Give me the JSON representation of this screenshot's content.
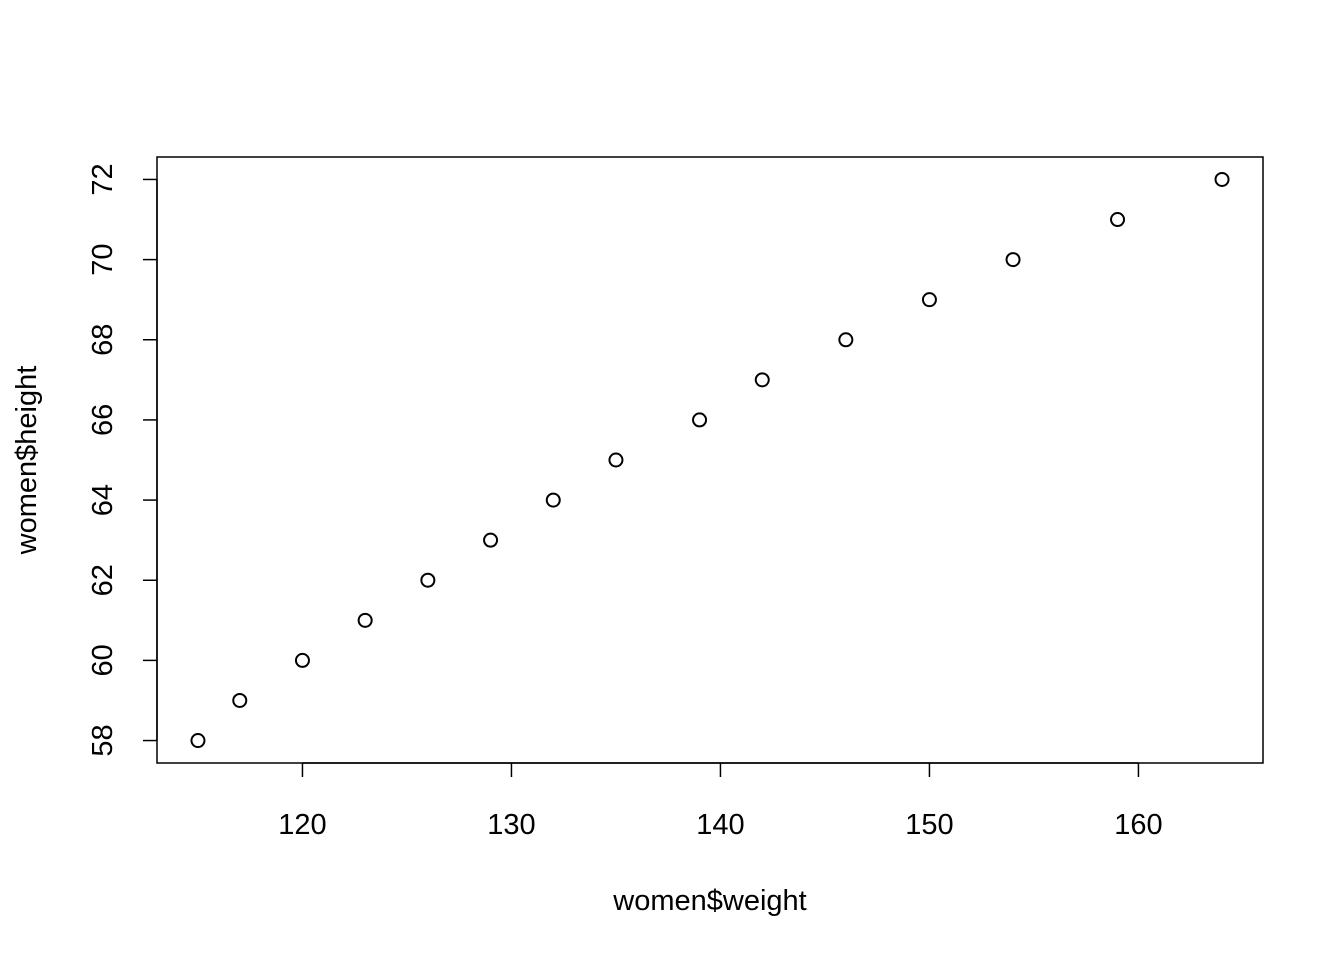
{
  "chart_data": {
    "type": "scatter",
    "title": "",
    "xlabel": "women$weight",
    "ylabel": "women$height",
    "x": [
      115,
      117,
      120,
      123,
      126,
      129,
      132,
      135,
      139,
      142,
      146,
      150,
      154,
      159,
      164
    ],
    "y": [
      58,
      59,
      60,
      61,
      62,
      63,
      64,
      65,
      66,
      67,
      68,
      69,
      70,
      71,
      72
    ],
    "xlim": [
      113.04,
      165.96
    ],
    "ylim": [
      57.44,
      72.56
    ],
    "x_ticks": [
      "120",
      "130",
      "140",
      "150",
      "160"
    ],
    "y_ticks": [
      "58",
      "60",
      "62",
      "64",
      "66",
      "68",
      "70",
      "72"
    ],
    "point_style": "open-circle",
    "grid": false,
    "legend": "none"
  }
}
